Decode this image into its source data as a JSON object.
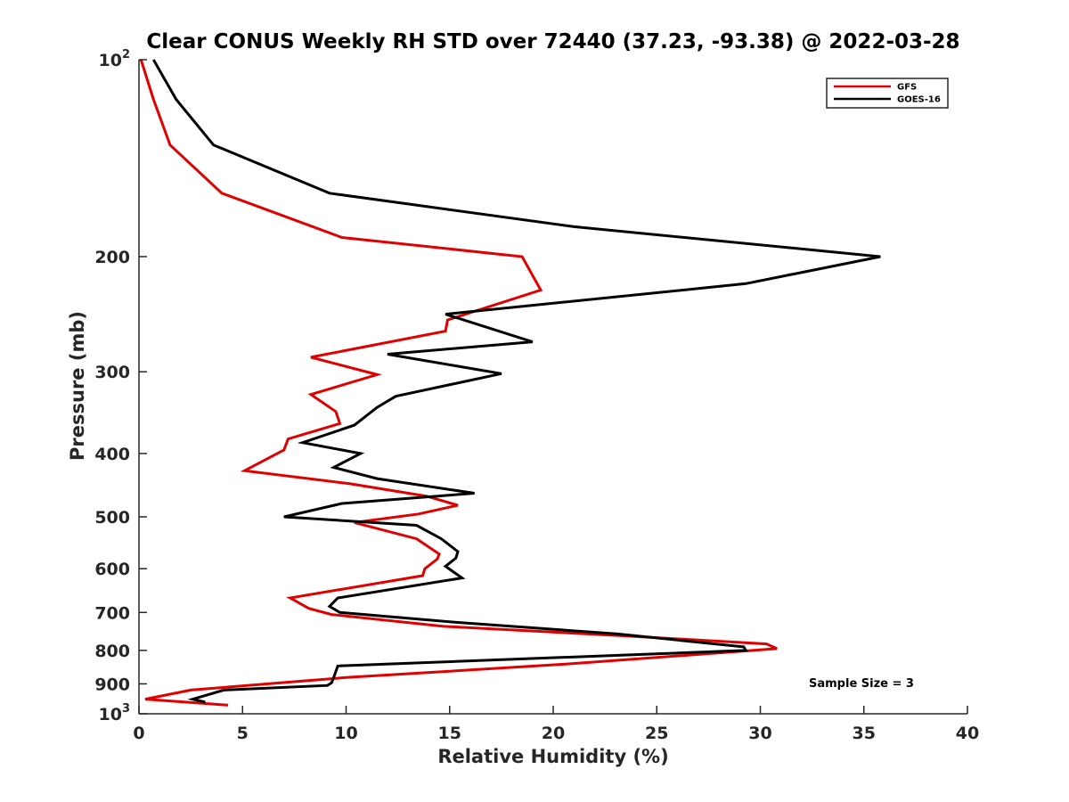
{
  "chart_data": {
    "type": "line",
    "title": "Clear CONUS Weekly RH STD over 72440 (37.23, -93.38) @ 2022-03-28",
    "xlabel": "Relative Humidity (%)",
    "ylabel": "Pressure (mb)",
    "xlim": [
      0,
      40
    ],
    "ylim": [
      100,
      1000
    ],
    "y_scale": "log",
    "y_reversed": true,
    "grid": false,
    "legend_position": "top-right",
    "x_ticks": [
      "0",
      "5",
      "10",
      "15",
      "20",
      "25",
      "30",
      "35",
      "40"
    ],
    "y_ticks": [
      {
        "value": 100,
        "base": "10",
        "exp": "2"
      },
      {
        "value": 200,
        "label": "200"
      },
      {
        "value": 300,
        "label": "300"
      },
      {
        "value": 400,
        "label": "400"
      },
      {
        "value": 500,
        "label": "500"
      },
      {
        "value": 600,
        "label": "600"
      },
      {
        "value": 700,
        "label": "700"
      },
      {
        "value": 800,
        "label": "800"
      },
      {
        "value": 900,
        "label": "900"
      },
      {
        "value": 1000,
        "base": "10",
        "exp": "3"
      }
    ],
    "annotation": "Sample Size = 3",
    "series": [
      {
        "name": "GFS",
        "color": "#e00000",
        "points": [
          [
            0.1,
            100
          ],
          [
            0.7,
            115
          ],
          [
            1.5,
            135
          ],
          [
            4.0,
            160
          ],
          [
            9.8,
            187
          ],
          [
            18.5,
            200
          ],
          [
            19.4,
            225
          ],
          [
            14.9,
            250
          ],
          [
            14.8,
            260
          ],
          [
            8.3,
            285
          ],
          [
            11.5,
            303
          ],
          [
            8.3,
            325
          ],
          [
            9.5,
            345
          ],
          [
            9.7,
            360
          ],
          [
            7.2,
            380
          ],
          [
            7.0,
            395
          ],
          [
            5.1,
            425
          ],
          [
            10.2,
            445
          ],
          [
            13.9,
            465
          ],
          [
            15.4,
            480
          ],
          [
            13.5,
            495
          ],
          [
            10.4,
            510
          ],
          [
            13.4,
            540
          ],
          [
            14.5,
            570
          ],
          [
            14.4,
            580
          ],
          [
            13.8,
            600
          ],
          [
            13.7,
            615
          ],
          [
            7.3,
            665
          ],
          [
            8.2,
            690
          ],
          [
            9.3,
            705
          ],
          [
            14.7,
            735
          ],
          [
            23.4,
            760
          ],
          [
            30.3,
            782
          ],
          [
            30.8,
            795
          ],
          [
            20.5,
            840
          ],
          [
            10.0,
            880
          ],
          [
            2.5,
            920
          ],
          [
            0.3,
            950
          ],
          [
            4.3,
            970
          ]
        ]
      },
      {
        "name": "GOES-16",
        "color": "#000000",
        "points": [
          [
            0.7,
            100
          ],
          [
            1.8,
            115
          ],
          [
            3.6,
            135
          ],
          [
            9.2,
            160
          ],
          [
            21.0,
            180
          ],
          [
            35.8,
            200
          ],
          [
            29.3,
            220
          ],
          [
            14.8,
            245
          ],
          [
            19.0,
            270
          ],
          [
            12.0,
            282
          ],
          [
            17.5,
            302
          ],
          [
            12.4,
            327
          ],
          [
            11.5,
            340
          ],
          [
            10.4,
            362
          ],
          [
            7.9,
            385
          ],
          [
            10.7,
            400
          ],
          [
            9.4,
            420
          ],
          [
            11.5,
            437
          ],
          [
            16.2,
            460
          ],
          [
            9.8,
            477
          ],
          [
            7.0,
            500
          ],
          [
            13.4,
            515
          ],
          [
            14.6,
            540
          ],
          [
            15.4,
            565
          ],
          [
            15.3,
            578
          ],
          [
            14.8,
            595
          ],
          [
            15.6,
            620
          ],
          [
            9.6,
            665
          ],
          [
            9.2,
            685
          ],
          [
            9.7,
            700
          ],
          [
            15.4,
            725
          ],
          [
            23.1,
            755
          ],
          [
            29.2,
            790
          ],
          [
            29.3,
            800
          ],
          [
            9.6,
            845
          ],
          [
            9.4,
            880
          ],
          [
            9.3,
            897
          ],
          [
            9.1,
            905
          ],
          [
            4.1,
            920
          ],
          [
            2.6,
            950
          ],
          [
            3.2,
            960
          ]
        ]
      }
    ]
  }
}
